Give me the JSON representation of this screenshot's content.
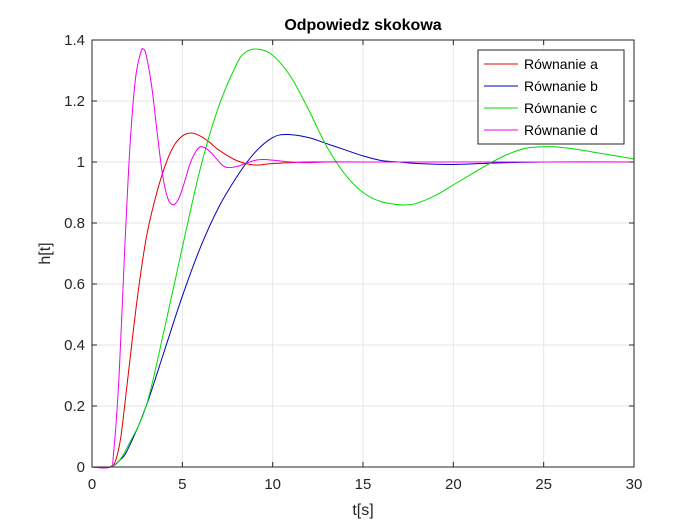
{
  "chart_data": {
    "type": "line",
    "title": "Odpowiedz skokowa",
    "xlabel": "t[s]",
    "ylabel": "h[t]",
    "xlim": [
      0,
      30
    ],
    "ylim": [
      0,
      1.4
    ],
    "x_ticks": [
      0,
      5,
      10,
      15,
      20,
      25,
      30
    ],
    "x_tick_labels": [
      "0",
      "5",
      "10",
      "15",
      "20",
      "25",
      "30"
    ],
    "y_ticks": [
      0,
      0.2,
      0.4,
      0.6,
      0.8,
      1.0,
      1.2,
      1.4
    ],
    "y_tick_labels": [
      "0",
      "0.2",
      "0.4",
      "0.6",
      "0.8",
      "1",
      "1.2",
      "1.4"
    ],
    "grid": true,
    "legend_position": "top-right",
    "series": [
      {
        "name": "Równanie a",
        "color": "#e00000",
        "x": [
          0,
          1,
          1.3,
          1.6,
          2,
          2.5,
          3,
          3.5,
          4,
          4.5,
          5,
          5.5,
          6,
          6.5,
          7,
          8,
          9,
          10,
          12,
          15,
          20,
          25,
          30
        ],
        "y": [
          0,
          0,
          0.02,
          0.1,
          0.3,
          0.55,
          0.75,
          0.88,
          0.98,
          1.05,
          1.085,
          1.095,
          1.085,
          1.065,
          1.04,
          1.005,
          0.99,
          0.995,
          1.0,
          1.0,
          1.0,
          1.0,
          1.0
        ]
      },
      {
        "name": "Równanie b",
        "color": "#0000c0",
        "x": [
          0,
          1,
          1.5,
          2,
          3,
          4,
          5,
          6,
          7,
          8,
          9,
          10,
          10.8,
          12,
          13,
          14,
          15,
          16,
          17,
          18,
          20,
          22,
          25,
          30
        ],
        "y": [
          0,
          0,
          0.02,
          0.06,
          0.2,
          0.38,
          0.56,
          0.72,
          0.85,
          0.95,
          1.03,
          1.08,
          1.09,
          1.08,
          1.06,
          1.04,
          1.02,
          1.005,
          1.0,
          0.995,
          0.992,
          0.996,
          1.0,
          1.0
        ]
      },
      {
        "name": "Równanie c",
        "color": "#00dd00",
        "x": [
          0,
          1,
          1.5,
          2,
          3,
          4,
          5,
          6,
          7,
          8,
          8.5,
          9.2,
          10,
          11,
          12,
          13,
          14,
          15,
          16,
          17,
          17.5,
          18,
          19,
          20,
          21,
          22,
          23,
          24,
          25,
          25.5,
          26,
          27,
          28,
          29,
          30
        ],
        "y": [
          0,
          0,
          0.02,
          0.07,
          0.2,
          0.45,
          0.72,
          0.98,
          1.18,
          1.32,
          1.36,
          1.37,
          1.35,
          1.28,
          1.17,
          1.05,
          0.96,
          0.9,
          0.87,
          0.86,
          0.86,
          0.865,
          0.89,
          0.925,
          0.96,
          0.995,
          1.025,
          1.045,
          1.05,
          1.05,
          1.048,
          1.04,
          1.03,
          1.02,
          1.01
        ]
      },
      {
        "name": "Równanie d",
        "color": "#ee00ee",
        "x": [
          0,
          1,
          1.2,
          1.5,
          1.8,
          2.1,
          2.4,
          2.7,
          2.85,
          3,
          3.3,
          3.6,
          3.9,
          4.2,
          4.5,
          4.8,
          5.1,
          5.4,
          5.7,
          6,
          6.3,
          6.6,
          6.9,
          7.2,
          7.5,
          8,
          8.5,
          9,
          9.5,
          10,
          10.5,
          11,
          12,
          13,
          15,
          20,
          25,
          30
        ],
        "y": [
          0,
          0,
          0.05,
          0.3,
          0.7,
          1.05,
          1.27,
          1.36,
          1.37,
          1.35,
          1.25,
          1.1,
          0.96,
          0.88,
          0.86,
          0.88,
          0.93,
          0.99,
          1.03,
          1.05,
          1.045,
          1.03,
          1.01,
          0.99,
          0.982,
          0.985,
          0.995,
          1.005,
          1.008,
          1.006,
          1.003,
          1.0,
          0.998,
          1.0,
          1.0,
          1.0,
          1.0,
          1.0
        ]
      }
    ]
  }
}
